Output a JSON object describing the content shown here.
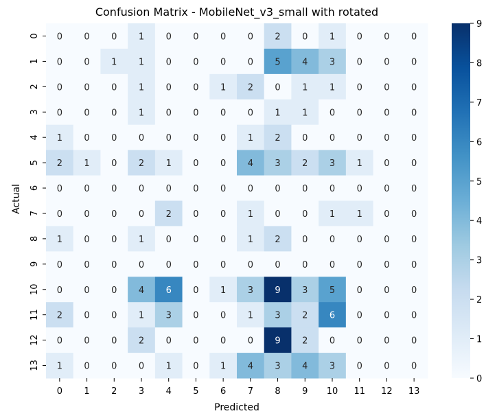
{
  "chart_data": {
    "type": "heatmap",
    "title": "Confusion Matrix - MobileNet_v3_small with rotated",
    "xlabel": "Predicted",
    "ylabel": "Actual",
    "x_categories": [
      "0",
      "1",
      "2",
      "3",
      "4",
      "5",
      "6",
      "7",
      "8",
      "9",
      "10",
      "11",
      "12",
      "13"
    ],
    "y_categories": [
      "0",
      "1",
      "2",
      "3",
      "4",
      "5",
      "6",
      "7",
      "8",
      "9",
      "10",
      "11",
      "12",
      "13"
    ],
    "values": [
      [
        0,
        0,
        0,
        1,
        0,
        0,
        0,
        0,
        2,
        0,
        1,
        0,
        0,
        0
      ],
      [
        0,
        0,
        1,
        1,
        0,
        0,
        0,
        0,
        5,
        4,
        3,
        0,
        0,
        0
      ],
      [
        0,
        0,
        0,
        1,
        0,
        0,
        1,
        2,
        0,
        1,
        1,
        0,
        0,
        0
      ],
      [
        0,
        0,
        0,
        1,
        0,
        0,
        0,
        0,
        1,
        1,
        0,
        0,
        0,
        0
      ],
      [
        1,
        0,
        0,
        0,
        0,
        0,
        0,
        1,
        2,
        0,
        0,
        0,
        0,
        0
      ],
      [
        2,
        1,
        0,
        2,
        1,
        0,
        0,
        4,
        3,
        2,
        3,
        1,
        0,
        0
      ],
      [
        0,
        0,
        0,
        0,
        0,
        0,
        0,
        0,
        0,
        0,
        0,
        0,
        0,
        0
      ],
      [
        0,
        0,
        0,
        0,
        2,
        0,
        0,
        1,
        0,
        0,
        1,
        1,
        0,
        0
      ],
      [
        1,
        0,
        0,
        1,
        0,
        0,
        0,
        1,
        2,
        0,
        0,
        0,
        0,
        0
      ],
      [
        0,
        0,
        0,
        0,
        0,
        0,
        0,
        0,
        0,
        0,
        0,
        0,
        0,
        0
      ],
      [
        0,
        0,
        0,
        4,
        6,
        0,
        1,
        3,
        9,
        3,
        5,
        0,
        0,
        0
      ],
      [
        2,
        0,
        0,
        1,
        3,
        0,
        0,
        1,
        3,
        2,
        6,
        0,
        0,
        0
      ],
      [
        0,
        0,
        0,
        2,
        0,
        0,
        0,
        0,
        9,
        2,
        0,
        0,
        0,
        0
      ],
      [
        1,
        0,
        0,
        0,
        1,
        0,
        1,
        4,
        3,
        4,
        3,
        0,
        0,
        0
      ]
    ],
    "vmin": 0,
    "vmax": 9,
    "colorbar_ticks": [
      0,
      1,
      2,
      3,
      4,
      5,
      6,
      7,
      8,
      9
    ],
    "colormap": "Blues",
    "grid": false,
    "colorbar_position": "right"
  }
}
